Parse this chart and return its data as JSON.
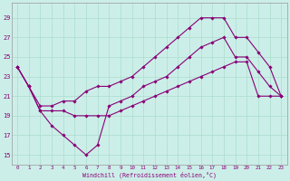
{
  "xlabel": "Windchill (Refroidissement éolien,°C)",
  "bg_color": "#cceee8",
  "grid_color": "#aaddcc",
  "line_color": "#880077",
  "x_ticks": [
    0,
    1,
    2,
    3,
    4,
    5,
    6,
    7,
    8,
    9,
    10,
    11,
    12,
    13,
    14,
    15,
    16,
    17,
    18,
    19,
    20,
    21,
    22,
    23
  ],
  "y_ticks": [
    15,
    17,
    19,
    21,
    23,
    25,
    27,
    29
  ],
  "xlim": [
    -0.5,
    23.5
  ],
  "ylim": [
    14.0,
    30.5
  ],
  "line1_x": [
    0,
    1,
    2,
    3,
    4,
    5,
    6,
    7,
    8,
    9,
    10,
    11,
    12,
    13,
    14,
    15,
    16,
    17,
    18,
    19,
    20,
    21,
    22,
    23
  ],
  "line1_y": [
    24,
    22,
    19.5,
    19.5,
    19.5,
    19,
    19,
    19,
    19,
    19.5,
    20,
    20.5,
    21,
    21.5,
    22,
    22.5,
    23,
    23.5,
    24,
    24.5,
    24.5,
    21,
    21,
    21
  ],
  "line2_x": [
    0,
    1,
    2,
    3,
    4,
    5,
    6,
    7,
    8,
    9,
    10,
    11,
    12,
    13,
    14,
    15,
    16,
    17,
    18,
    19,
    20,
    21,
    22,
    23
  ],
  "line2_y": [
    24,
    22,
    20,
    20,
    20.5,
    20.5,
    21.5,
    22,
    22,
    22.5,
    23,
    24,
    25,
    26,
    27,
    28,
    29,
    29,
    29,
    27,
    27,
    25.5,
    24,
    21
  ],
  "line3_x": [
    0,
    1,
    2,
    3,
    4,
    5,
    6,
    7,
    8,
    9,
    10,
    11,
    12,
    13,
    14,
    15,
    16,
    17,
    18,
    19,
    20,
    21,
    22,
    23
  ],
  "line3_y": [
    24,
    22,
    19.5,
    18,
    17,
    16,
    15,
    16,
    20,
    20.5,
    21,
    22,
    22.5,
    23,
    24,
    25,
    26,
    26.5,
    27,
    25,
    25,
    23.5,
    22,
    21
  ]
}
